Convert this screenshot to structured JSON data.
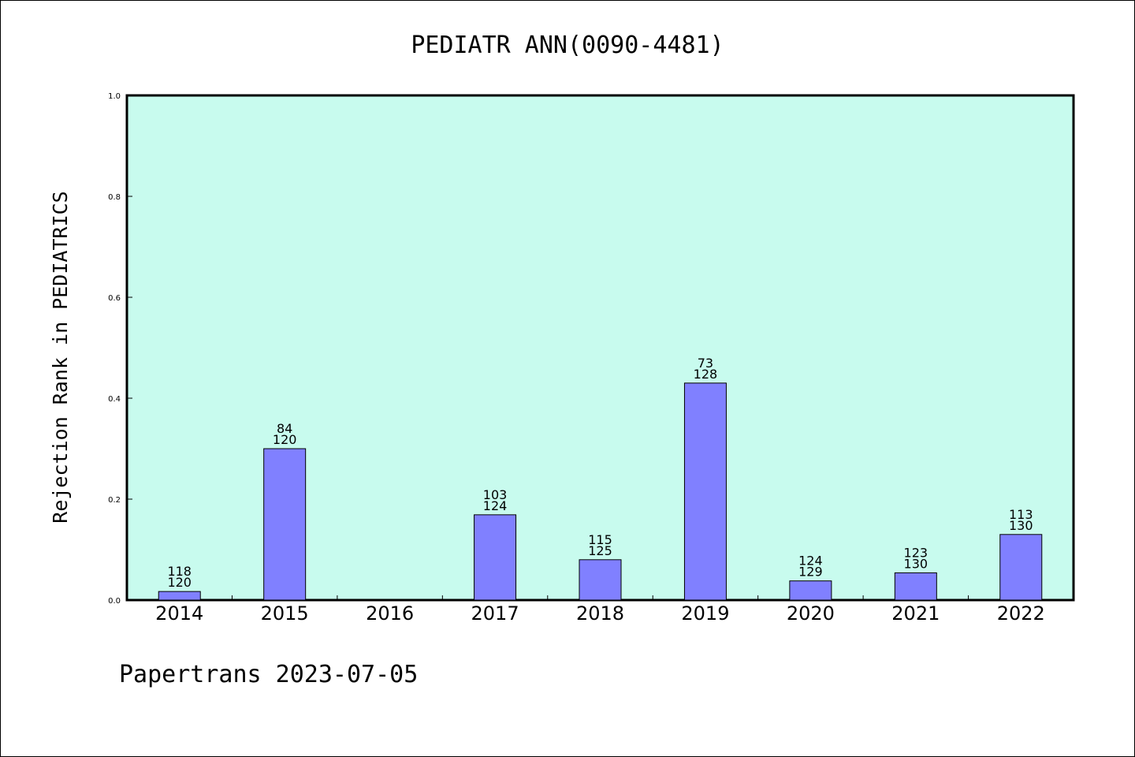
{
  "title": "PEDIATR ANN(0090-4481)",
  "footer": "Papertrans 2023-07-05",
  "colors": {
    "plot_background": "#c8fbee",
    "bar_fill": "#8080ff",
    "bar_stroke": "#000000",
    "axis": "#000000"
  },
  "chart_data": {
    "type": "bar",
    "title": "PEDIATR ANN(0090-4481)",
    "xlabel": "",
    "ylabel": "Rejection Rank in PEDIATRICS",
    "ylim": [
      0,
      1.0
    ],
    "yticks": [
      "0.0",
      "0.2",
      "0.4",
      "0.6",
      "0.8",
      "1.0"
    ],
    "categories": [
      "2014",
      "2015",
      "2016",
      "2017",
      "2018",
      "2019",
      "2020",
      "2021",
      "2022"
    ],
    "values": [
      0.017,
      0.3,
      null,
      0.169,
      0.08,
      0.43,
      0.038,
      0.054,
      0.13
    ],
    "labels_top": [
      "118",
      "84",
      "",
      "103",
      "115",
      "73",
      "124",
      "123",
      "113"
    ],
    "labels_bottom": [
      "120",
      "120",
      "",
      "124",
      "125",
      "128",
      "129",
      "130",
      "130"
    ],
    "grid": false,
    "legend": "none"
  }
}
